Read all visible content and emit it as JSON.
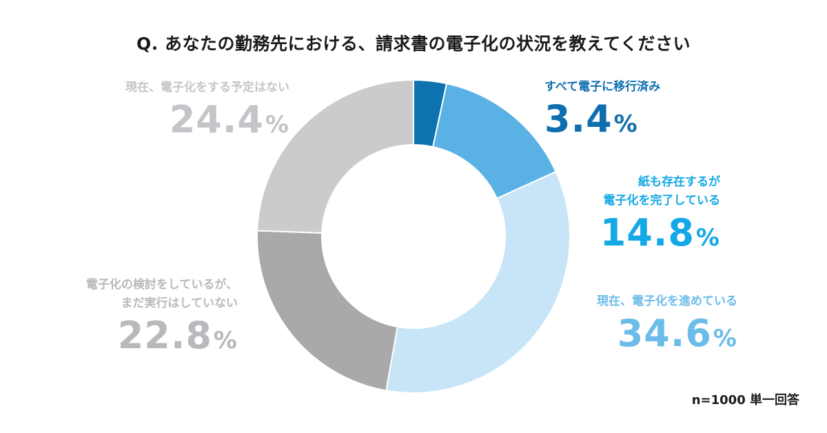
{
  "chart_data": {
    "type": "pie",
    "title": "Q. あなたの勤務先における、請求書の電子化の状況を教えてください",
    "categories": [
      "すべて電子に移行済み",
      "紙も存在するが\n電子化を完了している",
      "現在、電子化を進めている",
      "電子化の検討をしているが、\nまだ実行はしていない",
      "現在、電子化をする予定はない"
    ],
    "values": [
      3.4,
      14.8,
      34.6,
      22.8,
      24.4
    ],
    "value_labels": [
      "3.4",
      "14.8",
      "34.6",
      "22.8",
      "24.4"
    ],
    "percent_sign": "%",
    "colors": [
      "#0d72b0",
      "#5ab2e4",
      "#c8e5f7",
      "#a9a8ab",
      "#cbcacd"
    ],
    "label_colors": [
      "#0f6fae",
      "#14a8e6",
      "#6cbce9",
      "#b9b9bd",
      "#c5c4c8"
    ],
    "note": "n=1000 単一回答"
  }
}
